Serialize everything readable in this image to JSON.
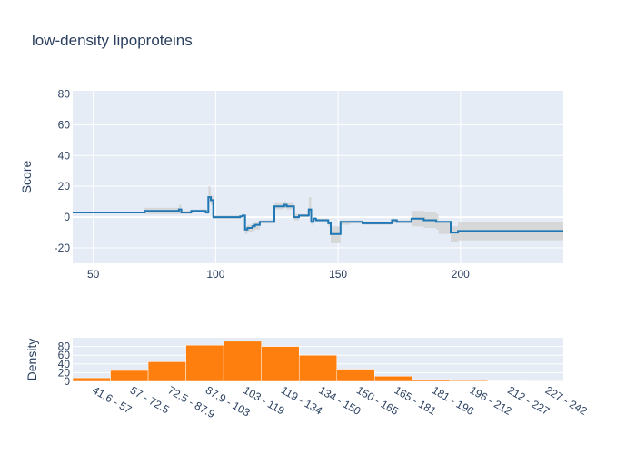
{
  "chart_data": [
    {
      "type": "line",
      "title": "low-density lipoproteins",
      "xlabel": "",
      "ylabel": "Score",
      "xlim": [
        41.6,
        242
      ],
      "ylim": [
        -30,
        82
      ],
      "xticks": [
        50,
        100,
        150,
        200
      ],
      "yticks": [
        -20,
        0,
        20,
        40,
        60,
        80
      ],
      "grid": true,
      "line_color": "#1f77b4",
      "band_color": "#d3d3d3",
      "series": [
        {
          "step": true,
          "x": [
            41.6,
            71,
            85,
            86,
            90,
            92,
            96,
            97,
            98,
            99,
            110,
            111,
            112,
            113,
            115,
            116,
            118,
            120,
            124,
            125,
            128,
            129,
            131,
            132,
            133,
            134,
            137,
            138,
            139,
            140,
            141,
            143,
            146,
            147,
            151,
            155,
            160,
            165,
            172,
            174,
            180,
            185,
            190,
            191,
            195,
            196,
            199,
            242
          ],
          "y": [
            3,
            4,
            5,
            3,
            4,
            4,
            3,
            13,
            11,
            0,
            0.5,
            1,
            -8,
            -7,
            -6,
            -5,
            -3,
            -3,
            7,
            7,
            8,
            7,
            7,
            0,
            0,
            1,
            1,
            5,
            -3,
            -1,
            -2,
            -2,
            -4,
            -11,
            -3,
            -3,
            -4,
            -4,
            -2,
            -3,
            -1,
            -2,
            -3,
            -3,
            -3,
            -10,
            -9,
            -9
          ],
          "lower": [
            3,
            2,
            2,
            2,
            3,
            3,
            2,
            9,
            8,
            -1,
            0,
            0,
            -11,
            -10,
            -9,
            -8,
            -4,
            -4,
            5,
            5,
            6,
            5,
            5,
            -2,
            -2,
            0,
            0,
            2,
            -5,
            -2,
            -3,
            -3,
            -6,
            -17,
            -5,
            -4,
            -5,
            -5,
            -4,
            -4,
            -6,
            -7,
            -8,
            -11,
            -11,
            -16,
            -15,
            -15
          ],
          "upper": [
            3,
            6,
            8,
            4,
            5,
            5,
            4,
            20,
            14,
            1,
            1,
            2,
            -6,
            -5,
            -4,
            -3,
            -2,
            -2,
            9,
            9,
            10,
            9,
            9,
            2,
            2,
            2,
            2,
            13,
            -1,
            0,
            -1,
            -1,
            -3,
            -6,
            -2,
            -2,
            -3,
            -3,
            -1,
            -2,
            4,
            3,
            2,
            -3,
            -3,
            -6,
            -3,
            -3
          ]
        }
      ]
    },
    {
      "type": "bar",
      "xlabel": "",
      "ylabel": "Density",
      "ylim": [
        0,
        100
      ],
      "yticks": [
        0,
        20,
        40,
        60,
        80
      ],
      "bar_color": "#ff7f0e",
      "categories": [
        "41.6 - 57",
        "57 - 72.5",
        "72.5 - 87.9",
        "87.9 - 103",
        "103 - 119",
        "119 - 134",
        "134 - 150",
        "150 - 165",
        "165 - 181",
        "181 - 196",
        "196 - 212",
        "212 - 227",
        "227 - 242"
      ],
      "values": [
        8,
        25,
        45,
        83,
        92,
        80,
        60,
        28,
        12,
        4,
        2,
        1,
        0.5
      ]
    }
  ]
}
